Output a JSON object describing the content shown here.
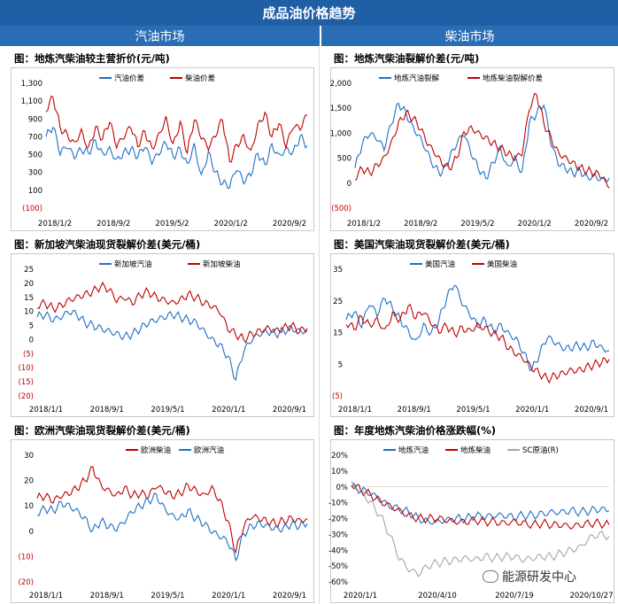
{
  "header": {
    "title": "成品油价格趋势"
  },
  "columns": {
    "left": "汽油市场",
    "right": "柴油市场"
  },
  "colors": {
    "blue": "#1f6fc5",
    "red": "#c00000",
    "gray": "#a6a6a6",
    "header_bg": "#1f5fa6"
  },
  "watermark": {
    "text": "能源研发中心"
  },
  "chart_data": [
    {
      "id": "c1",
      "type": "line",
      "title": "图：地炼汽柴油较主营折价(元/吨)",
      "yticks": [
        "1,300",
        "1,100",
        "900",
        "700",
        "500",
        "300",
        "100",
        "(100)"
      ],
      "ylim": [
        -100,
        1300
      ],
      "xticks": [
        "2018/1/2",
        "2018/9/2",
        "2019/5/2",
        "2020/1/2",
        "2020/9/2"
      ],
      "series": [
        {
          "name": "汽油价差",
          "color": "#1f6fc5",
          "values": [
            700,
            820,
            520,
            600,
            480,
            560,
            520,
            650,
            500,
            560,
            430,
            520,
            560,
            480,
            600,
            420,
            520,
            640,
            480,
            560,
            380,
            600,
            250,
            520,
            300,
            180,
            150,
            350,
            200,
            280,
            520,
            380,
            600,
            480,
            560,
            520,
            700,
            600
          ]
        },
        {
          "name": "柴油价差",
          "color": "#c00000",
          "values": [
            1000,
            1150,
            800,
            720,
            620,
            760,
            560,
            800,
            680,
            880,
            600,
            700,
            820,
            600,
            760,
            560,
            720,
            900,
            600,
            860,
            520,
            900,
            700,
            580,
            720,
            900,
            420,
            600,
            700,
            520,
            820,
            960,
            700,
            860,
            600,
            820,
            800,
            940
          ]
        }
      ]
    },
    {
      "id": "c2",
      "type": "line",
      "title": "图：地炼汽柴油裂解价差(元/吨)",
      "yticks": [
        "2,000",
        "1,500",
        "1,000",
        "500",
        "0",
        "(500)"
      ],
      "ylim": [
        -500,
        2000
      ],
      "xticks": [
        "2018/1/2",
        "2018/9/2",
        "2019/5/2",
        "2020/1/2",
        "2020/9/2"
      ],
      "series": [
        {
          "name": "地炼汽油裂解",
          "color": "#1f6fc5",
          "values": [
            300,
            800,
            1000,
            900,
            700,
            1200,
            1600,
            1400,
            1100,
            900,
            600,
            300,
            200,
            500,
            800,
            1000,
            600,
            300,
            100,
            400,
            700,
            300,
            500,
            200,
            1200,
            1400,
            1600,
            800,
            400,
            300,
            200,
            250,
            100,
            150,
            50,
            100
          ]
        },
        {
          "name": "地炼柴油裂解价差",
          "color": "#c00000",
          "values": [
            100,
            300,
            200,
            350,
            500,
            800,
            1200,
            1400,
            1300,
            1100,
            800,
            600,
            400,
            300,
            500,
            1000,
            1100,
            1000,
            900,
            800,
            700,
            600,
            500,
            600,
            1500,
            1800,
            1200,
            900,
            600,
            500,
            400,
            300,
            250,
            200,
            150,
            -100
          ]
        }
      ]
    },
    {
      "id": "c3",
      "type": "line",
      "title": "图：新加坡汽柴油现货裂解价差(美元/桶)",
      "yticks": [
        "25",
        "20",
        "15",
        "10",
        "5",
        "0",
        "(5)",
        "(10)",
        "(15)",
        "(20)"
      ],
      "ylim": [
        -20,
        25
      ],
      "xticks": [
        "2018/1/1",
        "2018/9/1",
        "2019/5/1",
        "2020/1/1",
        "2020/9/1"
      ],
      "series": [
        {
          "name": "新加坡汽油",
          "color": "#1f6fc5",
          "values": [
            8,
            9,
            7,
            8,
            10,
            9,
            6,
            5,
            4,
            3,
            2,
            1,
            2,
            4,
            6,
            7,
            8,
            9,
            8,
            7,
            6,
            3,
            0,
            -2,
            -6,
            -14,
            -4,
            0,
            2,
            3,
            2,
            3,
            4,
            3,
            3
          ]
        },
        {
          "name": "新加坡柴油",
          "color": "#c00000",
          "values": [
            12,
            13,
            11,
            12,
            14,
            15,
            16,
            17,
            19,
            18,
            14,
            15,
            13,
            16,
            17,
            15,
            14,
            13,
            14,
            16,
            15,
            13,
            12,
            10,
            4,
            2,
            0,
            2,
            3,
            4,
            3,
            4,
            5,
            3,
            4
          ]
        }
      ]
    },
    {
      "id": "c4",
      "type": "line",
      "title": "图：美国汽柴油现货裂解价差(美元/桶)",
      "yticks": [
        "35",
        "25",
        "15",
        "5",
        "(5)"
      ],
      "ylim": [
        -5,
        40
      ],
      "xticks": [
        "2018/1/1",
        "2018/9/1",
        "2019/5/1",
        "2020/1/1",
        "2020/9/1"
      ],
      "series": [
        {
          "name": "美国汽油",
          "color": "#1f6fc5",
          "values": [
            22,
            25,
            20,
            28,
            24,
            30,
            26,
            22,
            18,
            14,
            20,
            17,
            22,
            30,
            35,
            28,
            24,
            20,
            22,
            18,
            20,
            17,
            15,
            10,
            4,
            10,
            16,
            14,
            12,
            12,
            13,
            12,
            14,
            12,
            11
          ]
        },
        {
          "name": "美国柴油",
          "color": "#c00000",
          "values": [
            21,
            19,
            23,
            20,
            22,
            18,
            24,
            22,
            27,
            23,
            25,
            21,
            18,
            20,
            17,
            19,
            18,
            20,
            19,
            17,
            16,
            12,
            10,
            8,
            5,
            3,
            1,
            2,
            3,
            4,
            4,
            5,
            6,
            7,
            8
          ]
        }
      ]
    },
    {
      "id": "c5",
      "type": "line",
      "title": "图：欧洲汽柴油现货裂解价差(美元/桶)",
      "yticks": [
        "30",
        "20",
        "10",
        "0",
        "(10)",
        "(20)"
      ],
      "ylim": [
        -20,
        30
      ],
      "xticks": [
        "2018/1/1",
        "2018/9/1",
        "2019/5/1",
        "2020/1/1",
        "2020/9/1"
      ],
      "series": [
        {
          "name": "欧洲柴油",
          "color": "#c00000",
          "values": [
            13,
            14,
            12,
            14,
            15,
            17,
            20,
            25,
            18,
            16,
            14,
            17,
            14,
            15,
            14,
            18,
            16,
            14,
            15,
            18,
            16,
            14,
            17,
            12,
            4,
            -8,
            2,
            6,
            5,
            4,
            3,
            4,
            5,
            4,
            5
          ]
        },
        {
          "name": "欧洲汽油",
          "color": "#1f6fc5",
          "values": [
            7,
            9,
            8,
            11,
            10,
            8,
            5,
            0,
            4,
            2,
            1,
            4,
            8,
            10,
            12,
            14,
            9,
            6,
            5,
            8,
            5,
            3,
            0,
            -2,
            -4,
            -11,
            -1,
            2,
            3,
            2,
            1,
            1,
            3,
            2,
            3
          ]
        }
      ]
    },
    {
      "id": "c6",
      "type": "line",
      "title": "图：年度地炼汽柴油价格涨跌幅(%)",
      "yticks": [
        "20%",
        "10%",
        "0%",
        "-10%",
        "-20%",
        "-30%",
        "-40%",
        "-50%",
        "-60%"
      ],
      "ylim": [
        -60,
        20
      ],
      "xticks": [
        "2020/1/1",
        "2020/4/10",
        "2020/7/19",
        "2020/10/27"
      ],
      "series": [
        {
          "name": "地炼汽油",
          "color": "#1f6fc5",
          "values": [
            0,
            -2,
            -4,
            -8,
            -12,
            -14,
            -16,
            -20,
            -22,
            -22,
            -21,
            -20,
            -20,
            -18,
            -19,
            -18,
            -18,
            -19,
            -18,
            -18,
            -17,
            -16,
            -16,
            -15,
            -16,
            -15,
            -14,
            -15
          ]
        },
        {
          "name": "地炼柴油",
          "color": "#c00000",
          "values": [
            2,
            -2,
            -5,
            -9,
            -12,
            -15,
            -18,
            -20,
            -20,
            -20,
            -21,
            -22,
            -22,
            -21,
            -22,
            -22,
            -23,
            -22,
            -23,
            -24,
            -23,
            -24,
            -24,
            -25,
            -24,
            -23,
            -23,
            -24
          ]
        },
        {
          "name": "SC原油(R)",
          "color": "#a6a6a6",
          "values": [
            2,
            -3,
            -10,
            -18,
            -30,
            -45,
            -52,
            -55,
            -50,
            -48,
            -47,
            -46,
            -45,
            -46,
            -44,
            -45,
            -44,
            -44,
            -46,
            -45,
            -44,
            -44,
            -42,
            -40,
            -38,
            -32,
            -30,
            -31
          ]
        }
      ]
    }
  ]
}
